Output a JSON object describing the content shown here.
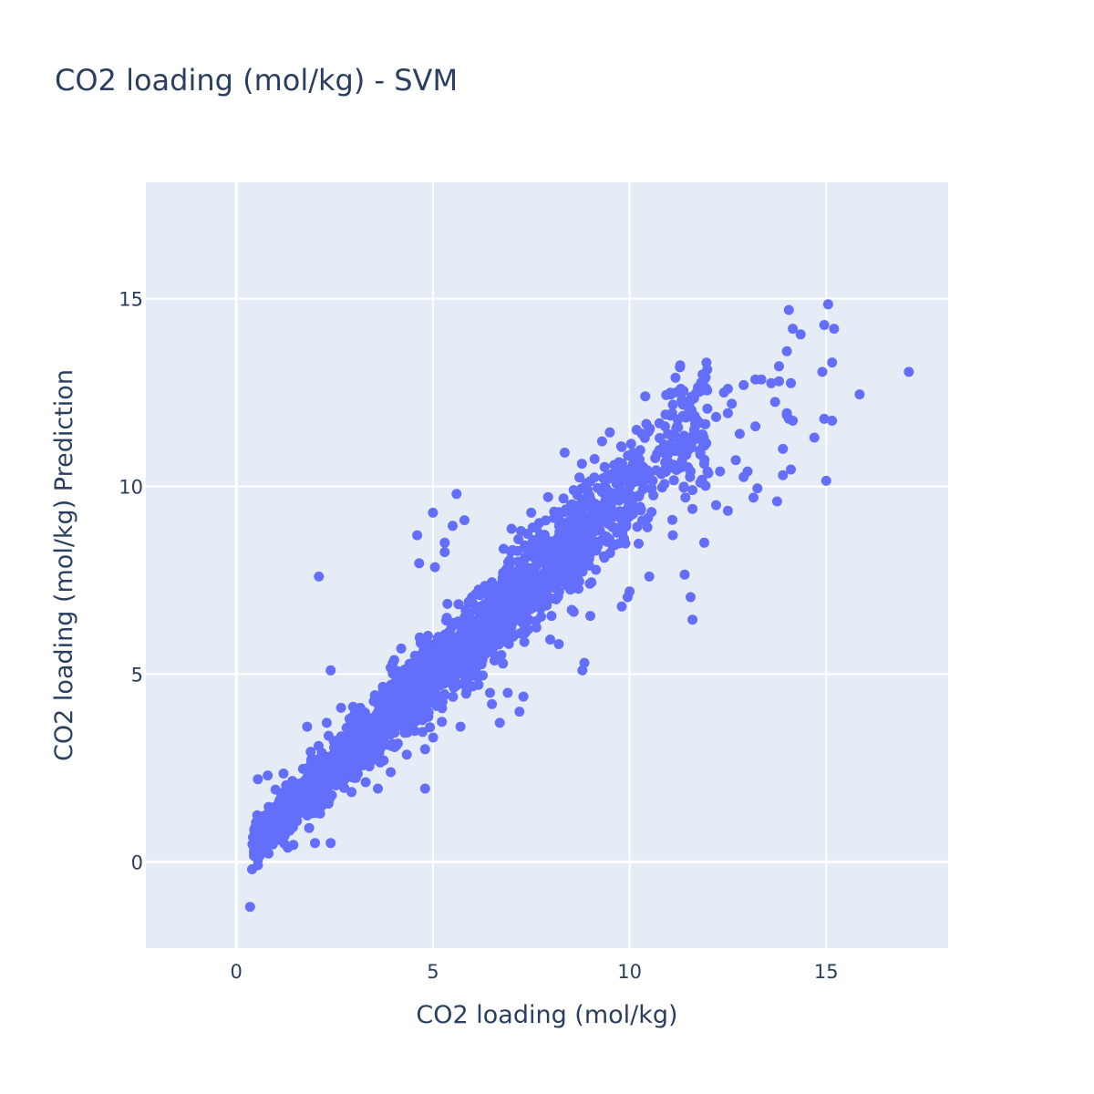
{
  "chart_data": {
    "type": "scatter",
    "title": "CO2 loading (mol/kg) - SVM",
    "xlabel": "CO2 loading (mol/kg)",
    "ylabel": "CO2 loading (mol/kg) Prediction",
    "xlim": [
      -2.3,
      18.1
    ],
    "ylim": [
      -2.3,
      18.1
    ],
    "xticks": [
      0,
      5,
      10,
      15
    ],
    "yticks": [
      0,
      5,
      10,
      15
    ],
    "grid": true,
    "marker_color": "#636efa",
    "background_color": "#e5ecf6",
    "generator": {
      "description": "Dense points are approximated along the y = 0.98x + 0.1 trend; outliers are read from the figure",
      "seed": 20240611,
      "count": 2200,
      "x_range": [
        0.4,
        12.0
      ],
      "slope": 0.98,
      "intercept": 0.1,
      "noise_sd": 0.55
    },
    "points": [
      [
        0.35,
        -1.2
      ],
      [
        0.4,
        -0.2
      ],
      [
        0.5,
        0.15
      ],
      [
        0.55,
        0.05
      ],
      [
        0.6,
        0.5
      ],
      [
        2.1,
        7.6
      ],
      [
        4.8,
        1.95
      ],
      [
        2.4,
        0.5
      ],
      [
        2.0,
        0.5
      ],
      [
        1.45,
        0.45
      ],
      [
        0.55,
        2.2
      ],
      [
        0.8,
        2.3
      ],
      [
        4.6,
        8.7
      ],
      [
        5.6,
        9.8
      ],
      [
        5.3,
        8.5
      ],
      [
        7.3,
        4.4
      ],
      [
        6.7,
        3.7
      ],
      [
        6.9,
        4.5
      ],
      [
        5.7,
        3.6
      ],
      [
        8.8,
        5.1
      ],
      [
        8.85,
        5.3
      ],
      [
        11.6,
        6.45
      ],
      [
        11.55,
        7.05
      ],
      [
        11.4,
        7.65
      ],
      [
        9.0,
        6.55
      ],
      [
        9.8,
        6.8
      ],
      [
        11.9,
        8.5
      ],
      [
        11.6,
        9.4
      ],
      [
        12.5,
        9.35
      ],
      [
        10.4,
        12.4
      ],
      [
        11.3,
        12.6
      ],
      [
        11.7,
        12.5
      ],
      [
        11.05,
        12.45
      ],
      [
        12.4,
        12.5
      ],
      [
        12.5,
        12.6
      ],
      [
        12.9,
        12.7
      ],
      [
        13.2,
        12.85
      ],
      [
        13.6,
        12.75
      ],
      [
        13.8,
        12.8
      ],
      [
        14.1,
        12.75
      ],
      [
        13.7,
        12.25
      ],
      [
        13.9,
        11.0
      ],
      [
        14.0,
        11.9
      ],
      [
        14.05,
        11.8
      ],
      [
        14.15,
        11.75
      ],
      [
        14.0,
        11.95
      ],
      [
        14.1,
        10.45
      ],
      [
        13.9,
        10.3
      ],
      [
        13.75,
        9.6
      ],
      [
        13.15,
        9.7
      ],
      [
        13.25,
        9.95
      ],
      [
        14.7,
        11.3
      ],
      [
        14.95,
        11.8
      ],
      [
        15.15,
        11.75
      ],
      [
        14.9,
        13.05
      ],
      [
        15.15,
        13.3
      ],
      [
        14.0,
        13.6
      ],
      [
        14.15,
        14.2
      ],
      [
        14.35,
        14.05
      ],
      [
        14.05,
        14.7
      ],
      [
        14.95,
        14.3
      ],
      [
        15.2,
        14.2
      ],
      [
        15.05,
        14.85
      ],
      [
        15.0,
        10.15
      ],
      [
        15.85,
        12.45
      ],
      [
        17.1,
        13.05
      ],
      [
        13.8,
        13.2
      ],
      [
        13.35,
        12.85
      ],
      [
        12.2,
        11.85
      ],
      [
        12.6,
        12.2
      ],
      [
        13.2,
        11.6
      ],
      [
        12.8,
        11.4
      ],
      [
        13.0,
        10.4
      ],
      [
        12.9,
        10.25
      ],
      [
        12.3,
        10.4
      ],
      [
        12.0,
        10.35
      ],
      [
        12.7,
        10.7
      ],
      [
        11.8,
        10.1
      ],
      [
        12.2,
        9.5
      ],
      [
        11.6,
        9.9
      ],
      [
        11.3,
        10.5
      ],
      [
        10.9,
        11.6
      ],
      [
        10.5,
        11.5
      ],
      [
        11.1,
        11.3
      ],
      [
        9.3,
        11.2
      ],
      [
        9.8,
        11.05
      ],
      [
        8.35,
        10.9
      ],
      [
        8.7,
        9.2
      ],
      [
        5.8,
        9.1
      ],
      [
        5.5,
        8.95
      ],
      [
        4.65,
        7.95
      ],
      [
        5.05,
        7.85
      ],
      [
        5.3,
        8.25
      ],
      [
        2.3,
        3.7
      ],
      [
        1.8,
        3.6
      ],
      [
        1.2,
        2.35
      ],
      [
        3.6,
        1.95
      ],
      [
        2.4,
        5.1
      ],
      [
        4.8,
        3.0
      ],
      [
        4.3,
        4.25
      ],
      [
        6.45,
        4.5
      ],
      [
        6.5,
        4.2
      ],
      [
        7.2,
        4.0
      ],
      [
        8.2,
        5.8
      ],
      [
        10.0,
        7.2
      ],
      [
        10.5,
        7.6
      ],
      [
        11.1,
        8.7
      ],
      [
        9.3,
        9.85
      ],
      [
        10.3,
        10.55
      ],
      [
        11.55,
        10.4
      ],
      [
        11.8,
        10.85
      ],
      [
        12.5,
        11.95
      ],
      [
        9.95,
        7.05
      ],
      [
        7.5,
        9.3
      ],
      [
        5.0,
        9.3
      ]
    ]
  }
}
